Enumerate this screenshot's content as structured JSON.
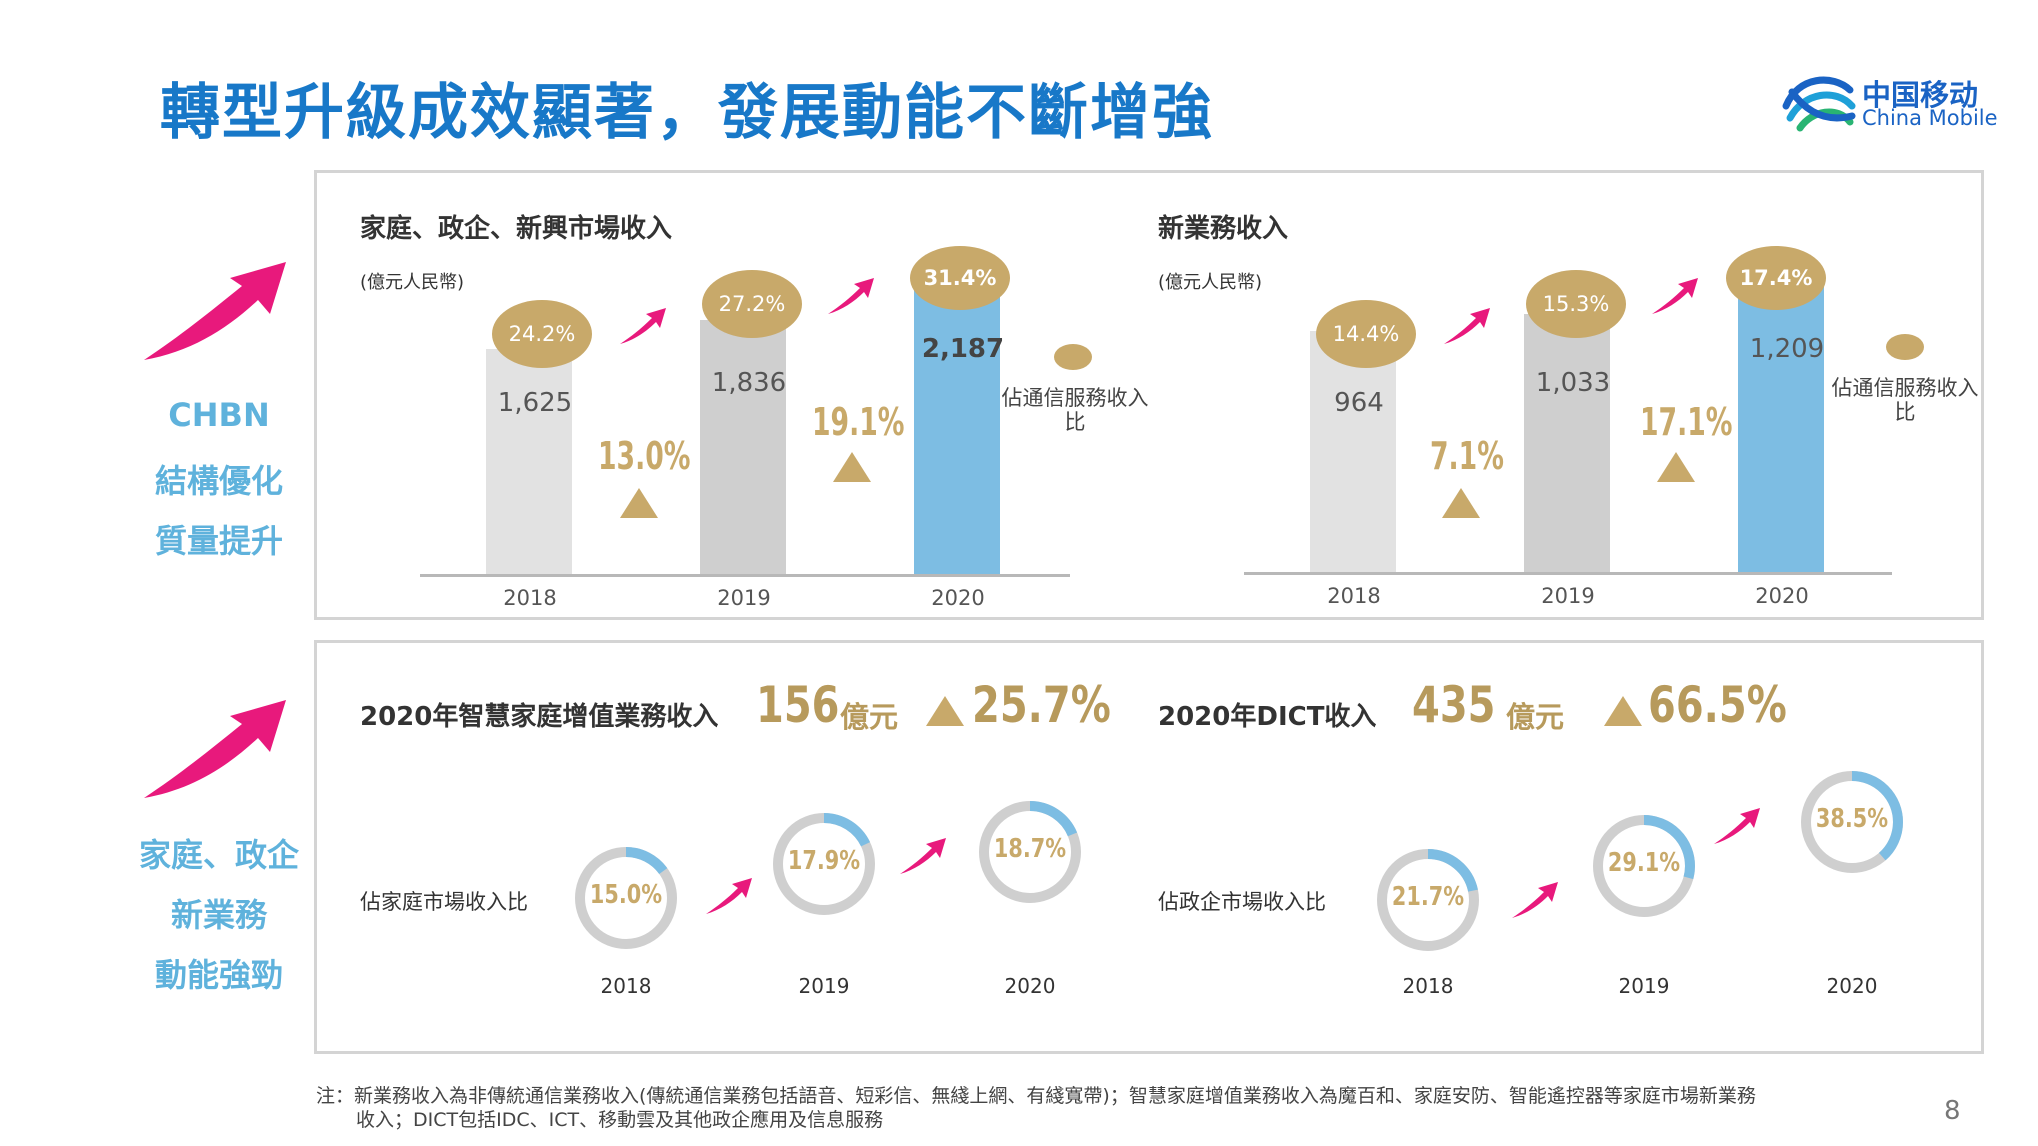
{
  "title": "轉型升級成效顯著，發展動能不斷增強",
  "logo": {
    "cn": "中国移动",
    "en": "China Mobile"
  },
  "side_labels": {
    "top": [
      "CHBN",
      "結構優化",
      "質量提升"
    ],
    "bottom": [
      "家庭、政企",
      "新業務",
      "動能強勁"
    ]
  },
  "colors": {
    "blue_title": "#1878c8",
    "gold": "#c8a96a",
    "light_blue": "#7dbde3",
    "pink_arrow": "#e8197c",
    "side_label": "#5fb2dc"
  },
  "chart_data": [
    {
      "type": "bar",
      "title": "家庭、政企、新興市場收入",
      "unit": "(億元人民幣)",
      "categories": [
        "2018",
        "2019",
        "2020"
      ],
      "values": [
        1625,
        1836,
        2187
      ],
      "value_labels": [
        "1,625",
        "1,836",
        "2,187"
      ],
      "colors": [
        "#e2e2e2",
        "#cfcfcf",
        "#7dbde3"
      ],
      "growth_labels": [
        "13.0%",
        "19.1%"
      ],
      "share_label": "佔通信服務收入比",
      "share_labels": [
        "24.2%",
        "27.2%",
        "31.4%"
      ],
      "ylim": [
        0,
        2600
      ]
    },
    {
      "type": "bar",
      "title": "新業務收入",
      "unit": "(億元人民幣)",
      "categories": [
        "2018",
        "2019",
        "2020"
      ],
      "values": [
        964,
        1033,
        1209
      ],
      "value_labels": [
        "964",
        "1,033",
        "1,209"
      ],
      "colors": [
        "#e2e2e2",
        "#cfcfcf",
        "#7dbde3"
      ],
      "growth_labels": [
        "7.1%",
        "17.1%"
      ],
      "share_label": "佔通信服務收入比",
      "share_labels": [
        "14.4%",
        "15.3%",
        "17.4%"
      ],
      "ylim": [
        0,
        1440
      ]
    },
    {
      "type": "pie",
      "title": "2020年智慧家庭增值業務收入",
      "kpi_value": "156",
      "kpi_unit": "億元",
      "kpi_growth": "25.7%",
      "row_label": "佔家庭市場收入比",
      "categories": [
        "2018",
        "2019",
        "2020"
      ],
      "values": [
        15.0,
        17.9,
        18.7
      ],
      "labels": [
        "15.0%",
        "17.9%",
        "18.7%"
      ]
    },
    {
      "type": "pie",
      "title": "2020年DICT收入",
      "kpi_value": "435",
      "kpi_unit": "億元",
      "kpi_growth": "66.5%",
      "row_label": "佔政企市場收入比",
      "categories": [
        "2018",
        "2019",
        "2020"
      ],
      "values": [
        21.7,
        29.1,
        38.5
      ],
      "labels": [
        "21.7%",
        "29.1%",
        "38.5%"
      ]
    }
  ],
  "footnote": {
    "line1": "注：新業務收入為非傳統通信業務收入(傳統通信業務包括語音、短彩信、無綫上網、有綫寬帶)；智慧家庭增值業務收入為魔百和、家庭安防、智能遙控器等家庭市場新業務",
    "line2": "收入；DICT包括IDC、ICT、移動雲及其他政企應用及信息服務"
  },
  "page_number": "8"
}
